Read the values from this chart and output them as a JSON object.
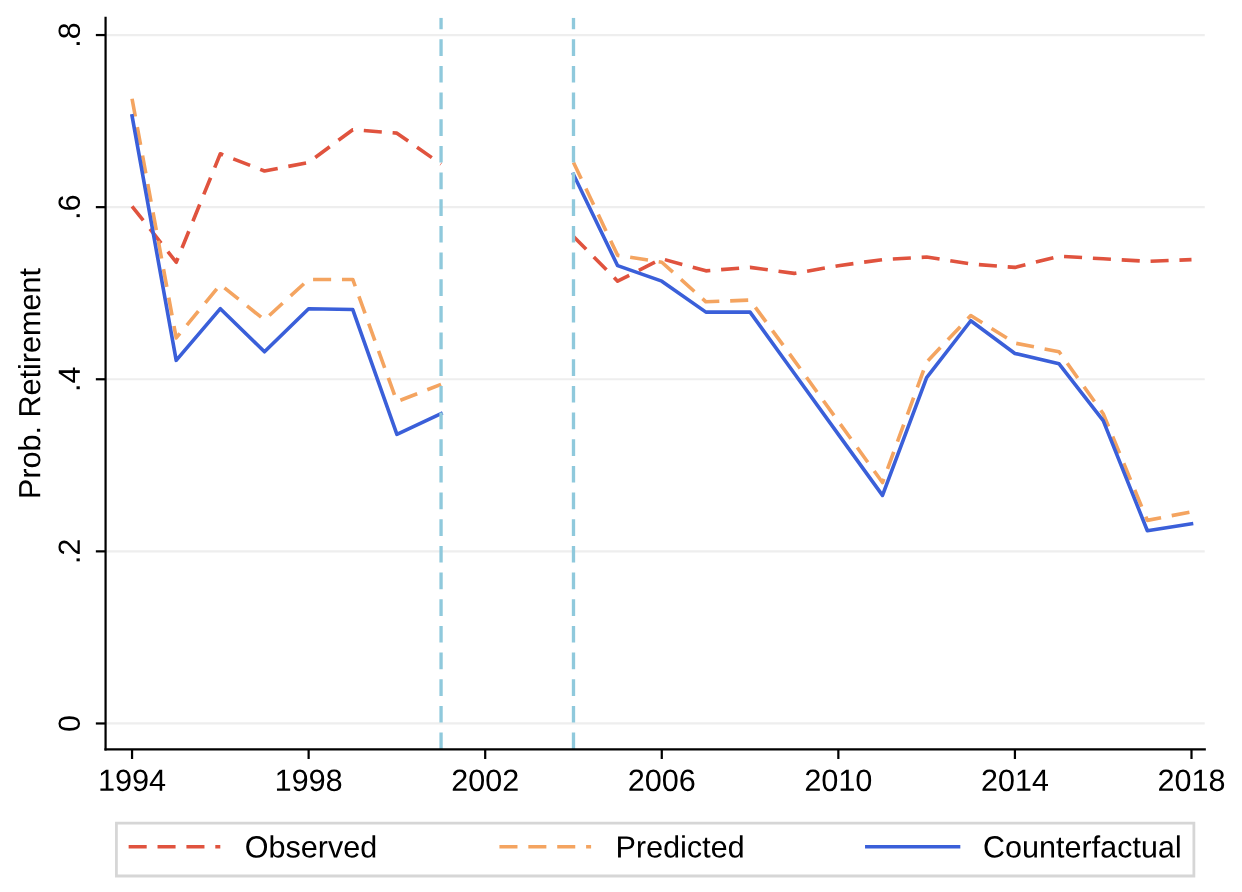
{
  "chart_data": {
    "type": "line",
    "ylabel": "Prob. Retirement",
    "x": [
      1994,
      1995,
      1996,
      1997,
      1998,
      1999,
      2000,
      2001,
      2002,
      2003,
      2004,
      2005,
      2006,
      2007,
      2008,
      2009,
      2010,
      2011,
      2012,
      2013,
      2014,
      2015,
      2016,
      2017,
      2018
    ],
    "series": [
      {
        "name": "Observed",
        "color": "#e0533e",
        "line_style": "dashed",
        "values": [
          0.601,
          0.536,
          0.662,
          0.642,
          0.652,
          0.69,
          0.686,
          0.65,
          null,
          null,
          0.566,
          0.514,
          0.54,
          0.526,
          0.53,
          0.523,
          0.532,
          0.539,
          0.542,
          0.534,
          0.53,
          0.543,
          0.54,
          0.537,
          0.539
        ]
      },
      {
        "name": "Predicted",
        "color": "#f4a460",
        "line_style": "dashed",
        "values": [
          0.726,
          0.448,
          0.51,
          0.469,
          0.516,
          0.516,
          0.374,
          0.394,
          null,
          null,
          0.652,
          0.544,
          0.536,
          0.49,
          0.492,
          0.422,
          0.351,
          0.28,
          0.42,
          0.474,
          0.442,
          0.432,
          0.36,
          0.236,
          0.246
        ]
      },
      {
        "name": "Counterfactual",
        "color": "#3a5fd9",
        "line_style": "solid",
        "values": [
          0.706,
          0.422,
          0.482,
          0.432,
          0.482,
          0.481,
          0.336,
          0.36,
          null,
          null,
          0.638,
          0.532,
          0.514,
          0.478,
          0.478,
          0.407,
          0.336,
          0.265,
          0.402,
          0.468,
          0.43,
          0.418,
          0.352,
          0.224,
          0.232
        ]
      }
    ],
    "xlim": [
      1993.4,
      2018.3
    ],
    "xticks": [
      1994,
      1998,
      2002,
      2006,
      2010,
      2014,
      2018
    ],
    "ylim": [
      -0.03,
      0.82
    ],
    "yticks": [
      {
        "value": 0,
        "label": "0"
      },
      {
        "value": 0.2,
        "label": ".2"
      },
      {
        "value": 0.4,
        "label": ".4"
      },
      {
        "value": 0.6,
        "label": ".6"
      },
      {
        "value": 0.8,
        "label": ".8"
      }
    ],
    "ref_lines": [
      {
        "axis": "x",
        "value": 2001,
        "color": "#8fc9dc",
        "line_style": "dashed"
      },
      {
        "axis": "x",
        "value": 2004,
        "color": "#8fc9dc",
        "line_style": "dashed"
      }
    ],
    "grid": "y",
    "legend": "bottom",
    "marker": "none"
  }
}
